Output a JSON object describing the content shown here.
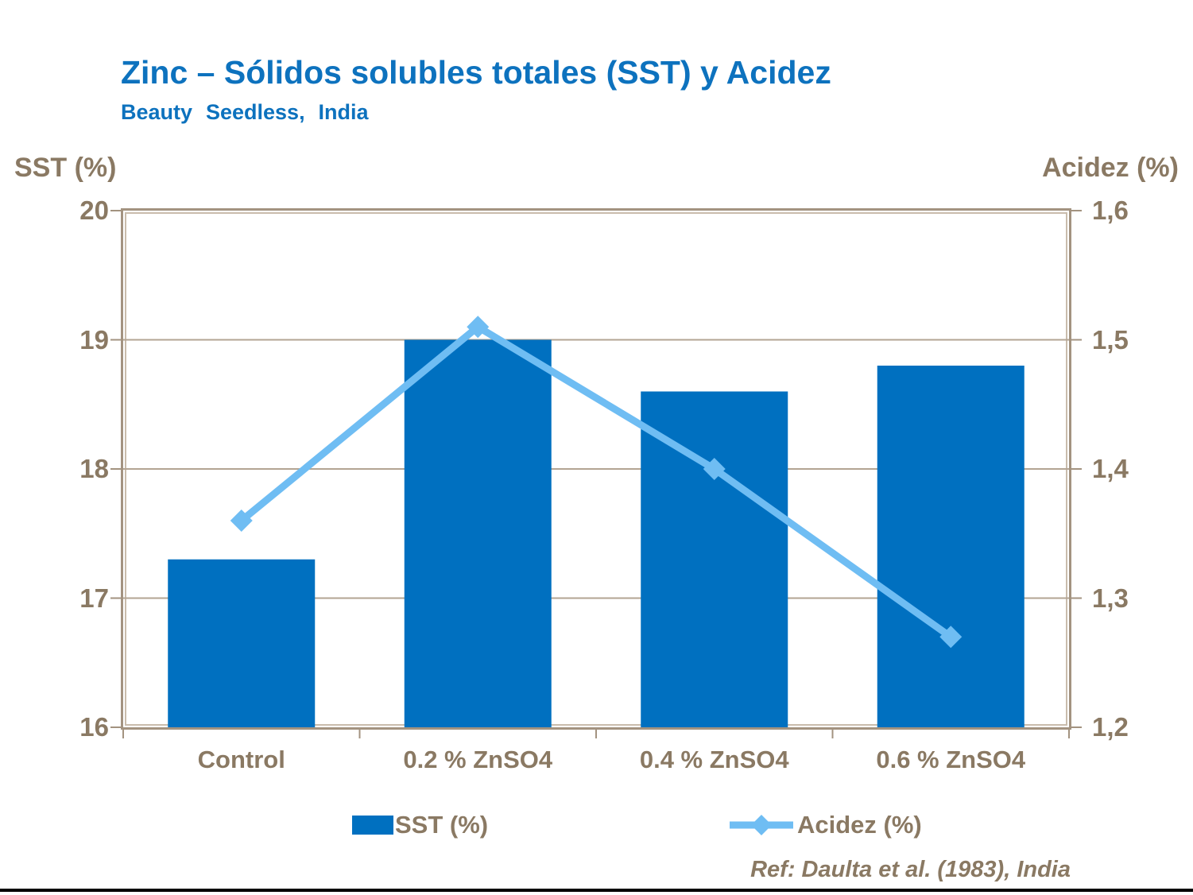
{
  "title": "Zinc – Sólidos solubles totales (SST) y Acidez",
  "subtitle": "Beauty Seedless, India",
  "reference": "Ref: Daulta et al. (1983), India",
  "colors": {
    "title_blue": "#0D72BE",
    "bar_blue": "#0070C0",
    "line_blue": "#6FBDF3",
    "text_brown": "#8A7963",
    "grid_tan": "#B3A493",
    "frame_tan": "#A39380"
  },
  "chart_data": {
    "type": "bar",
    "subtype": "combo-bar-line-dual-axis",
    "categories": [
      "Control",
      "0.2 % ZnSO4",
      "0.4 % ZnSO4",
      "0.6 % ZnSO4"
    ],
    "series": [
      {
        "name": "SST (%)",
        "type": "bar",
        "axis": "left",
        "color": "#0070C0",
        "values": [
          17.3,
          19.0,
          18.6,
          18.8
        ]
      },
      {
        "name": "Acidez (%)",
        "type": "line",
        "axis": "right",
        "color": "#6FBDF3",
        "values": [
          1.36,
          1.51,
          1.4,
          1.27
        ]
      }
    ],
    "left_axis": {
      "title": "SST (%)",
      "min": 16,
      "max": 20,
      "tick_labels_top_to_bottom": [
        "20",
        "19",
        "18",
        "17",
        "16"
      ]
    },
    "right_axis": {
      "title": "Acidez (%)",
      "min": 1.2,
      "max": 1.6,
      "tick_labels_top_to_bottom": [
        "1,6",
        "1,5",
        "1,4",
        "1,3",
        "1,2"
      ]
    },
    "grid": "horizontal-only",
    "legend_position": "bottom",
    "legend": [
      {
        "label": "SST (%)",
        "swatch": "bar-square"
      },
      {
        "label": "Acidez (%)",
        "swatch": "line-diamond"
      }
    ]
  }
}
